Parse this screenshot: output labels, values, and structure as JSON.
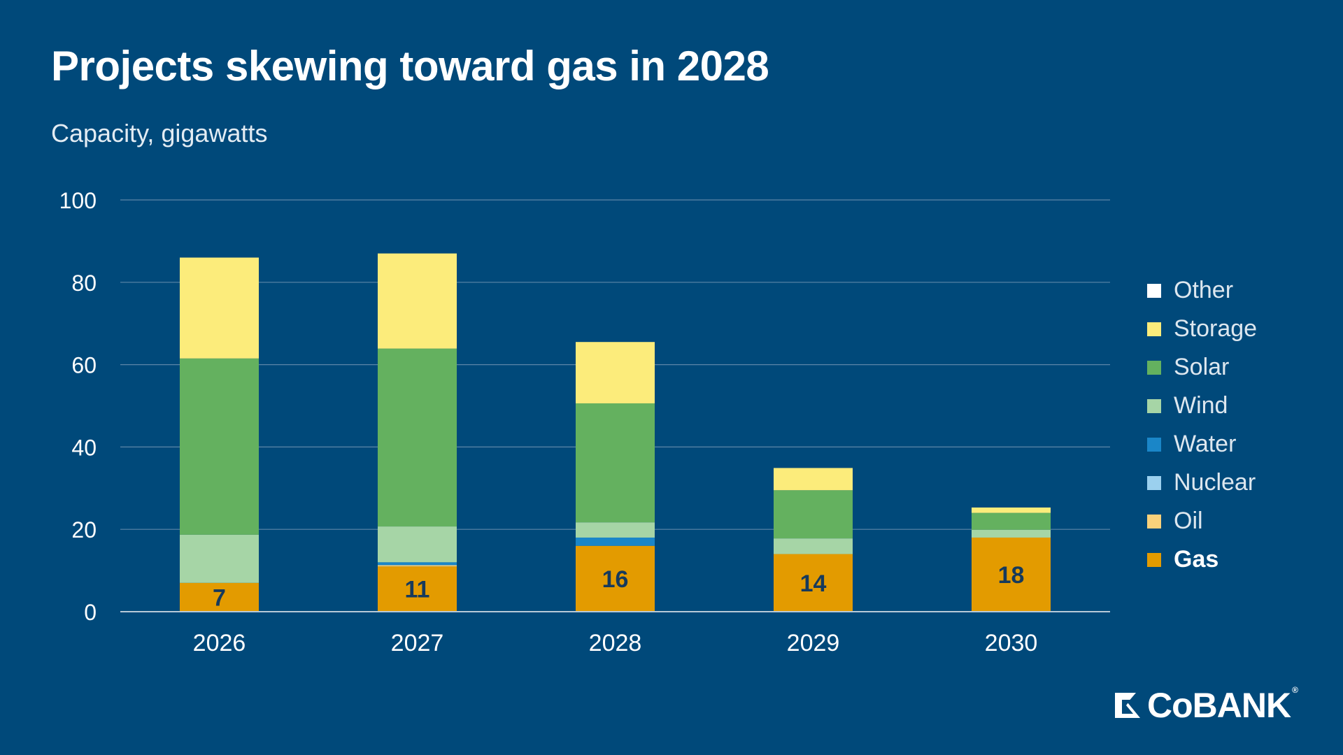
{
  "title": "Projects skewing toward gas in 2028",
  "subtitle": "Capacity, gigawatts",
  "logo": {
    "text": "CoBANK",
    "reg": "®"
  },
  "chart_data": {
    "type": "bar",
    "stacked": true,
    "categories": [
      "2026",
      "2027",
      "2028",
      "2029",
      "2030"
    ],
    "ylim": [
      0,
      100
    ],
    "yticks": [
      0,
      20,
      40,
      60,
      80,
      100
    ],
    "grid": true,
    "legend_placement": "right",
    "series": [
      {
        "name": "Gas",
        "color": "#e39b00",
        "values": [
          7,
          11,
          16,
          14,
          18
        ],
        "labels": [
          "7",
          "11",
          "16",
          "14",
          "18"
        ]
      },
      {
        "name": "Oil",
        "color": "#f9d17b",
        "values": [
          0,
          0.3,
          0,
          0,
          0
        ]
      },
      {
        "name": "Nuclear",
        "color": "#9bd0ee",
        "values": [
          0,
          0,
          0,
          0,
          0
        ]
      },
      {
        "name": "Water",
        "color": "#1a86c8",
        "values": [
          0,
          0.7,
          2,
          0,
          0
        ]
      },
      {
        "name": "Wind",
        "color": "#a6d5a6",
        "values": [
          11.7,
          8.7,
          3.7,
          3.8,
          1.9
        ]
      },
      {
        "name": "Solar",
        "color": "#64b15f",
        "values": [
          42.8,
          43.2,
          28.9,
          11.7,
          4.1
        ]
      },
      {
        "name": "Storage",
        "color": "#fcec7b",
        "values": [
          24.5,
          23.1,
          14.9,
          5.4,
          1.3
        ]
      },
      {
        "name": "Other",
        "color": "#ffffff",
        "values": [
          0,
          0,
          0,
          0,
          0
        ]
      }
    ],
    "legend": [
      {
        "name": "Other",
        "color": "#ffffff",
        "bold": false
      },
      {
        "name": "Storage",
        "color": "#fcec7b",
        "bold": false
      },
      {
        "name": "Solar",
        "color": "#64b15f",
        "bold": false
      },
      {
        "name": "Wind",
        "color": "#a6d5a6",
        "bold": false
      },
      {
        "name": "Water",
        "color": "#1a86c8",
        "bold": false
      },
      {
        "name": "Nuclear",
        "color": "#9bd0ee",
        "bold": false
      },
      {
        "name": "Oil",
        "color": "#f9d17b",
        "bold": false
      },
      {
        "name": "Gas",
        "color": "#e39b00",
        "bold": true
      }
    ]
  }
}
